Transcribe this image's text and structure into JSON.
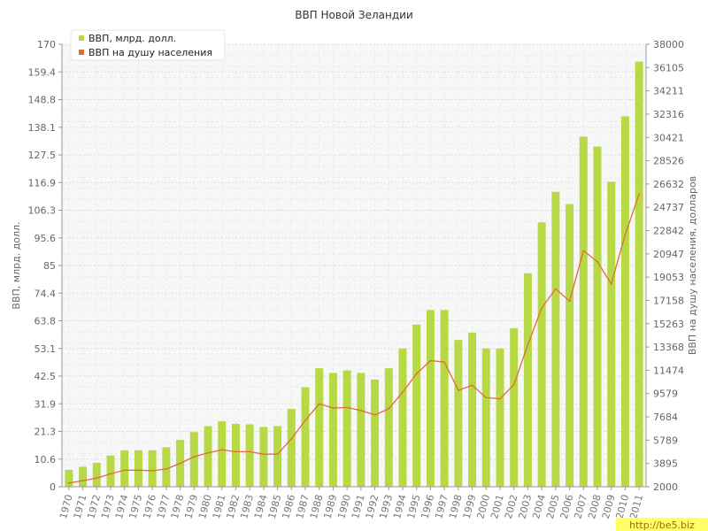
{
  "chart_data": {
    "type": "bar",
    "title": "ВВП Новой Зеландии",
    "categories": [
      "1970",
      "1971",
      "1972",
      "1973",
      "1974",
      "1975",
      "1976",
      "1977",
      "1978",
      "1979",
      "1980",
      "1981",
      "1982",
      "1983",
      "1984",
      "1985",
      "1986",
      "1987",
      "1988",
      "1989",
      "1990",
      "1991",
      "1992",
      "1993",
      "1994",
      "1995",
      "1996",
      "1997",
      "1998",
      "1999",
      "2000",
      "2001",
      "2002",
      "2003",
      "2004",
      "2005",
      "2006",
      "2007",
      "2008",
      "2009",
      "2010",
      "2011"
    ],
    "series": [
      {
        "name": "ВВП, млрд. долл.",
        "type": "bar",
        "axis": "left",
        "color": "#b8d946",
        "values": [
          6.5,
          7.7,
          9.2,
          12.0,
          14.0,
          14.0,
          14.0,
          15.2,
          18.0,
          21.0,
          23.3,
          25.1,
          24.2,
          24.0,
          23.0,
          23.3,
          29.9,
          38.2,
          45.5,
          43.7,
          44.7,
          43.7,
          41.2,
          45.5,
          53.1,
          62.3,
          67.9,
          67.9,
          56.4,
          59.2,
          53.1,
          53.1,
          60.9,
          82.0,
          101.6,
          113.3,
          108.6,
          134.5,
          130.7,
          117.2,
          142.3,
          163.3
        ]
      },
      {
        "name": "ВВП на душу населения",
        "type": "line",
        "axis": "right",
        "color": "#e06c3c",
        "values": [
          2300,
          2500,
          2700,
          3050,
          3350,
          3350,
          3300,
          3450,
          3900,
          4450,
          4750,
          5000,
          4850,
          4850,
          4650,
          4650,
          5900,
          7400,
          8750,
          8400,
          8450,
          8200,
          7850,
          8350,
          9700,
          11200,
          12250,
          12150,
          9850,
          10250,
          9250,
          9150,
          10300,
          13550,
          16550,
          18100,
          17100,
          21200,
          20300,
          18500,
          22500,
          25800
        ]
      }
    ],
    "ylabel": "ВВП, млрд. долл.",
    "y2label": "ВВП на душу населения, долларов",
    "ylim": [
      0,
      170
    ],
    "y2lim": [
      2000,
      38000
    ],
    "yticks": [
      "0",
      "10.6",
      "21.3",
      "31.9",
      "42.5",
      "53.1",
      "63.8",
      "74.4",
      "85",
      "95.6",
      "106.3",
      "116.9",
      "127.5",
      "138.1",
      "148.8",
      "159.4",
      "170"
    ],
    "y2ticks": [
      "2000",
      "3895",
      "5789",
      "7684",
      "9579",
      "11474",
      "13368",
      "15263",
      "17158",
      "19053",
      "20947",
      "22842",
      "24737",
      "26632",
      "28526",
      "30421",
      "32316",
      "34211",
      "36105",
      "38000"
    ],
    "grid": true,
    "legend": "top-left"
  },
  "watermark": "http://be5.biz"
}
